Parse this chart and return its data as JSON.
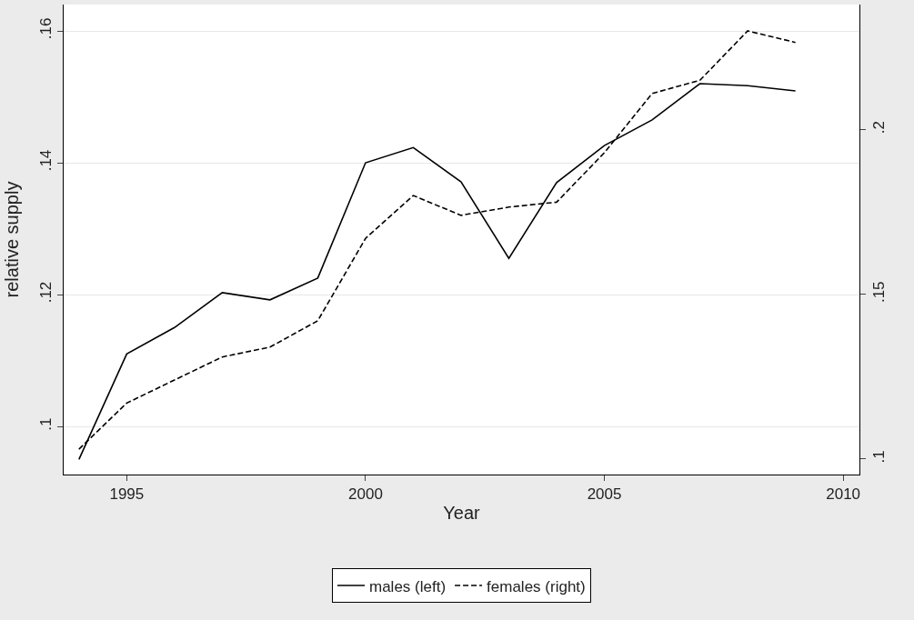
{
  "chart_data": {
    "type": "line",
    "xlabel": "Year",
    "ylabel": "relative supply",
    "x": [
      1994,
      1995,
      1996,
      1997,
      1998,
      1999,
      2000,
      2001,
      2002,
      2003,
      2004,
      2005,
      2006,
      2007,
      2008,
      2009
    ],
    "series": [
      {
        "name": "males (left)",
        "color": "#000000",
        "line_style": "solid",
        "values": [
          0.095,
          0.111,
          0.115,
          0.1203,
          0.1192,
          0.1225,
          0.14,
          0.1423,
          0.1371,
          0.1255,
          0.137,
          0.1426,
          0.1465,
          0.152,
          0.1517,
          0.1509
        ]
      },
      {
        "name": "females (right)",
        "color": "#000000",
        "line_style": "dashed",
        "axis": "y2",
        "values": [
          0.103,
          0.117,
          0.124,
          0.131,
          0.134,
          0.142,
          0.167,
          0.18,
          0.174,
          0.1765,
          0.178,
          0.193,
          0.211,
          0.215,
          0.23,
          0.2265
        ]
      }
    ],
    "xlim": [
      1993.68,
      2010.34
    ],
    "xticks": [
      1995,
      2000,
      2005,
      2010
    ],
    "ylim": [
      0.0927,
      0.164
    ],
    "yticks": [
      {
        "value": 0.1,
        "label": ".1"
      },
      {
        "value": 0.12,
        "label": ".12"
      },
      {
        "value": 0.14,
        "label": ".14"
      },
      {
        "value": 0.16,
        "label": ".16"
      }
    ],
    "y2lim": [
      0.0953,
      0.238
    ],
    "y2ticks": [
      {
        "value": 0.1,
        "label": ".1"
      },
      {
        "value": 0.15,
        "label": ".15"
      },
      {
        "value": 0.2,
        "label": ".2"
      }
    ],
    "grid": "y",
    "legend": "bottom",
    "marker": "none"
  }
}
